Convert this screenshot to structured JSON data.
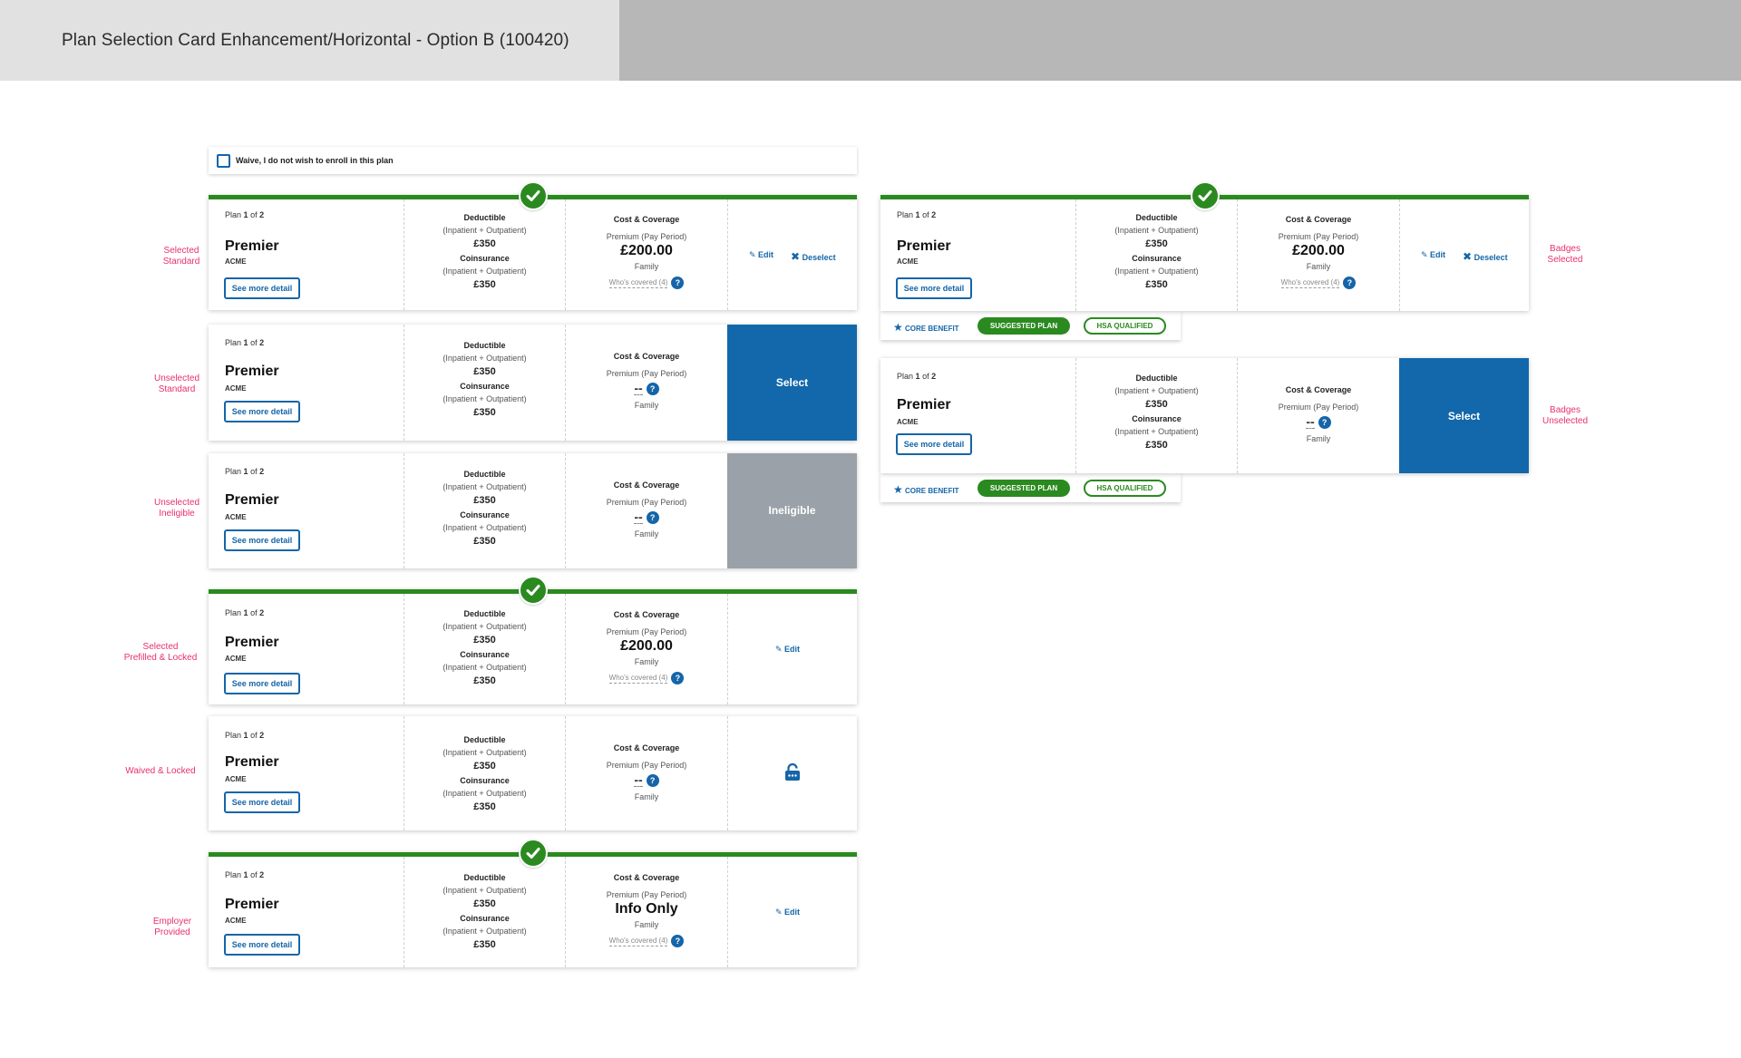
{
  "header": {
    "title": "Plan Selection Card Enhancement/Horizontal - Option B (100420)"
  },
  "waive": {
    "label": "Waive, I do not wish to enroll in this plan"
  },
  "common": {
    "plan_word": "Plan",
    "plan_num": "1",
    "of_word": "of",
    "plan_total": "2",
    "plan_name": "Premier",
    "carrier": "ACME",
    "see_more": "See more detail",
    "deductible": "Deductible",
    "in_out": "(Inpatient + Outpatient)",
    "amount": "£350",
    "coinsurance": "Coinsurance",
    "cost_coverage": "Cost & Coverage",
    "premium": "Premium (Pay Period)",
    "price": "£200.00",
    "dash": "--",
    "family": "Family",
    "whos_covered": "Who's covered (4)",
    "help": "?",
    "info_only": "Info Only",
    "edit": "Edit",
    "deselect": "Deselect",
    "select": "Select",
    "ineligible": "Ineligible"
  },
  "badges": {
    "core_benefit": "CORE BENEFIT",
    "suggested_plan": "SUGGESTED PLAN",
    "hsa_qualified": "HSA QUALIFIED"
  },
  "annotations": {
    "selected_standard": [
      "Selected",
      "Standard"
    ],
    "unselected_standard": [
      "Unselected",
      "Standard"
    ],
    "unselected_ineligible": [
      "Unselected",
      "Ineligible"
    ],
    "selected_prefilled": [
      "Selected",
      "Prefilled & Locked"
    ],
    "waived_locked": [
      "Waived & Locked"
    ],
    "employer_provided": [
      "Employer",
      "Provided"
    ],
    "badges_selected": [
      "Badges",
      "Selected"
    ],
    "badges_unselected": [
      "Badges",
      "Unselected"
    ]
  },
  "colors": {
    "brand_blue": "#1268ab",
    "selected_green": "#2a8a1f",
    "annotation_pink": "#e8306e",
    "ineligible_gray": "#9aa1a8"
  }
}
